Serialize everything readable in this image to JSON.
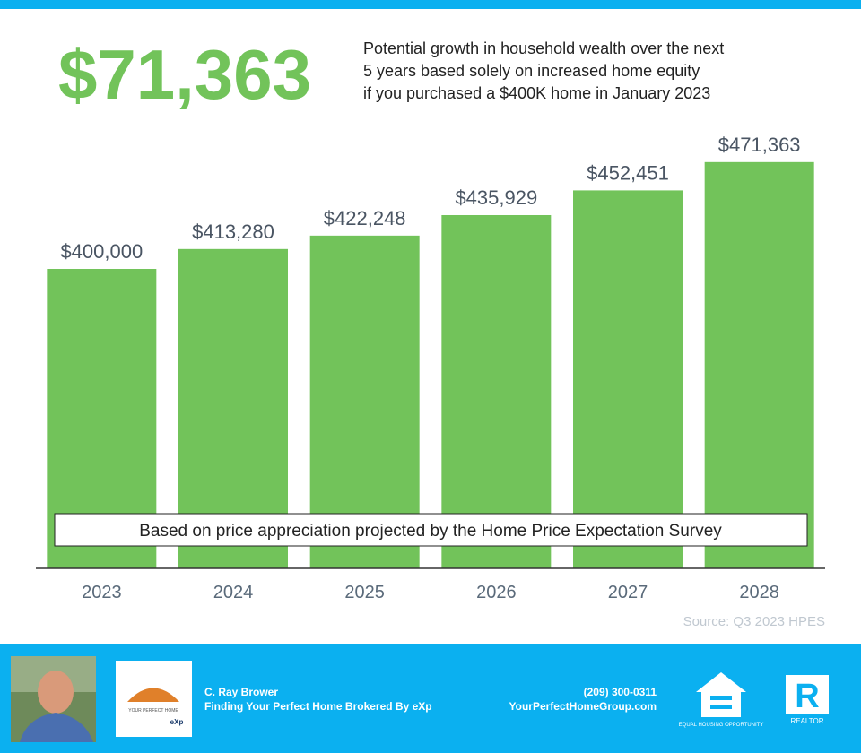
{
  "chart_data": {
    "type": "bar",
    "headline": "$71,363",
    "description": [
      "Potential growth in household wealth over the next",
      "5 years based solely on increased home equity",
      "if you purchased a $400K home in January 2023"
    ],
    "categories": [
      "2023",
      "2024",
      "2025",
      "2026",
      "2027",
      "2028"
    ],
    "values": [
      400000,
      413280,
      422248,
      435929,
      452451,
      471363
    ],
    "value_labels": [
      "$400,000",
      "$413,280",
      "$422,248",
      "$435,929",
      "$452,451",
      "$471,363"
    ],
    "color": "#72c35a",
    "ylim": [
      200000,
      500000
    ],
    "note": "Based on price appreciation projected by the Home Price Expectation Survey",
    "source": "Source: Q3 2023 HPES"
  },
  "footer": {
    "name": "C. Ray Brower",
    "tagline": "Finding Your Perfect Home Brokered By eXp",
    "phone": "(209) 300-0311",
    "website": "YourPerfectHomeGroup.com",
    "logo_text": "YOUR PERFECT HOME",
    "logo_brand": "eXp",
    "equal_housing": "EQUAL HOUSING OPPORTUNITY",
    "realtor": "REALTOR"
  }
}
